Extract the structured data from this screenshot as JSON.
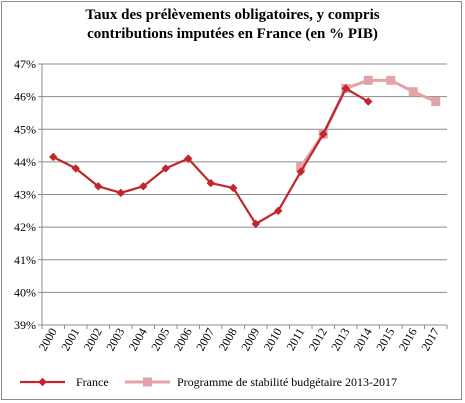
{
  "chart_data": {
    "type": "line",
    "title_line1": "Taux des prélèvements obligatoires, y compris",
    "title_line2": "contributions imputées en France (en % PIB)",
    "xlabel": "",
    "ylabel": "",
    "ylim": [
      39,
      47
    ],
    "y_ticks": [
      "39%",
      "40%",
      "41%",
      "42%",
      "43%",
      "44%",
      "45%",
      "46%",
      "47%"
    ],
    "grid": true,
    "legend_position": "bottom",
    "categories": [
      "2000",
      "2001",
      "2002",
      "2003",
      "2004",
      "2005",
      "2006",
      "2007",
      "2008",
      "2009",
      "2010",
      "2011",
      "2012",
      "2013",
      "2014",
      "2015",
      "2016",
      "2017"
    ],
    "series": [
      {
        "name": "France",
        "color": "#c0262c",
        "marker": "diamond",
        "values": [
          44.15,
          43.8,
          43.25,
          43.05,
          43.25,
          43.8,
          44.1,
          43.35,
          43.2,
          42.1,
          42.5,
          43.7,
          44.85,
          46.25,
          45.85,
          null,
          null,
          null
        ]
      },
      {
        "name": "Programme de stabilité budgétaire 2013-2017",
        "color": "#e3a3a7",
        "marker": "square",
        "values": [
          null,
          null,
          null,
          null,
          null,
          null,
          null,
          null,
          null,
          null,
          null,
          43.85,
          44.85,
          46.25,
          46.5,
          46.5,
          46.15,
          45.85
        ]
      }
    ]
  }
}
